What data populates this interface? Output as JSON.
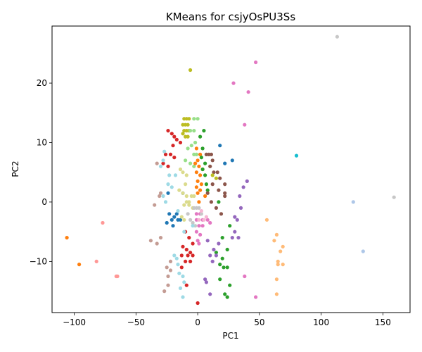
{
  "chart_data": {
    "type": "scatter",
    "title": "KMeans for csjyOsPU3Ss",
    "xlabel": "PC1",
    "ylabel": "PC2",
    "xlim": [
      -118,
      172
    ],
    "ylim": [
      -18.6,
      29.6
    ],
    "xticks": [
      -100,
      -50,
      0,
      50,
      100,
      150
    ],
    "yticks": [
      -10,
      0,
      10,
      20
    ],
    "xtick_labels": [
      "−100",
      "−50",
      "0",
      "50",
      "100",
      "150"
    ],
    "ytick_labels": [
      "−10",
      "0",
      "10",
      "20"
    ],
    "grid": false,
    "legend": "none",
    "series": [
      {
        "color": "#bcbd22",
        "points": [
          [
            -11,
            14
          ],
          [
            -9,
            14
          ],
          [
            -7,
            14
          ],
          [
            -12,
            13
          ],
          [
            -10,
            13
          ],
          [
            -8,
            13
          ],
          [
            -11,
            12
          ],
          [
            -9,
            12
          ],
          [
            -7,
            12
          ],
          [
            -12,
            11.5
          ],
          [
            -10,
            11
          ],
          [
            -8,
            11
          ],
          [
            -6,
            22.2
          ]
        ]
      },
      {
        "color": "#98df8a",
        "points": [
          [
            -3,
            14
          ],
          [
            0,
            14
          ],
          [
            -6,
            12
          ],
          [
            -3,
            12
          ],
          [
            -2,
            10
          ],
          [
            -5,
            9.5
          ],
          [
            -8,
            9
          ],
          [
            -3,
            8
          ],
          [
            -1,
            8
          ],
          [
            -10,
            7
          ],
          [
            -6,
            6.5
          ],
          [
            -3,
            6
          ]
        ]
      },
      {
        "color": "#d62728",
        "points": [
          [
            -24,
            12
          ],
          [
            -21,
            11.5
          ],
          [
            -19,
            11
          ],
          [
            -17,
            10.5
          ],
          [
            -14,
            10
          ],
          [
            -20,
            9.5
          ],
          [
            -26,
            8
          ],
          [
            -22,
            8
          ],
          [
            -19,
            7.5
          ],
          [
            -28,
            6.5
          ],
          [
            -24,
            6
          ],
          [
            -10,
            -5
          ],
          [
            -7,
            -6
          ],
          [
            -4,
            -7
          ],
          [
            -12,
            -7.5
          ],
          [
            -9,
            -8
          ],
          [
            -6,
            -8.5
          ],
          [
            -13,
            -9
          ],
          [
            -8,
            -9
          ],
          [
            -4,
            -9
          ],
          [
            -10,
            -10
          ],
          [
            -6,
            -10
          ],
          [
            -13,
            -11
          ],
          [
            -9,
            -14
          ],
          [
            0,
            -17
          ]
        ]
      },
      {
        "color": "#1f77b4",
        "points": [
          [
            -23,
            -2
          ],
          [
            -21,
            -3
          ],
          [
            -19,
            -2.5
          ],
          [
            -25,
            -3.5
          ],
          [
            -20,
            -4
          ],
          [
            -17,
            -2
          ],
          [
            -16,
            -3
          ],
          [
            -12,
            1.5
          ],
          [
            -14,
            -3
          ],
          [
            18,
            9.5
          ],
          [
            28,
            7
          ],
          [
            22,
            6.5
          ],
          [
            -24,
            1.5
          ]
        ]
      },
      {
        "color": "#ff7f0e",
        "points": [
          [
            -1,
            9
          ],
          [
            2,
            8
          ],
          [
            0,
            7
          ],
          [
            -2,
            6.5
          ],
          [
            1,
            6
          ],
          [
            4,
            5.5
          ],
          [
            -1,
            5
          ],
          [
            2,
            4.5
          ],
          [
            0,
            3.5
          ],
          [
            3,
            3
          ],
          [
            -1,
            2.5
          ],
          [
            2,
            2
          ],
          [
            0,
            1.5
          ],
          [
            6,
            1
          ],
          [
            1,
            0
          ],
          [
            -106,
            -6
          ],
          [
            -96,
            -10.5
          ]
        ]
      },
      {
        "color": "#2ca02c",
        "points": [
          [
            5,
            12
          ],
          [
            2,
            11
          ],
          [
            4,
            9
          ],
          [
            3,
            7.5
          ],
          [
            6,
            6.5
          ],
          [
            4,
            5.5
          ],
          [
            6,
            4.5
          ],
          [
            7,
            3
          ],
          [
            8,
            2
          ],
          [
            17,
            0
          ],
          [
            26,
            -4
          ],
          [
            20,
            -6
          ],
          [
            24,
            -8
          ],
          [
            15,
            -8.5
          ],
          [
            20,
            -9.5
          ],
          [
            18,
            -10.5
          ],
          [
            21,
            -11
          ],
          [
            24,
            -11
          ],
          [
            18,
            -13
          ],
          [
            26,
            -14
          ],
          [
            22,
            -15.5
          ],
          [
            24,
            -16
          ]
        ]
      },
      {
        "color": "#8c564b",
        "points": [
          [
            7,
            8
          ],
          [
            9,
            8
          ],
          [
            11,
            8
          ],
          [
            12,
            7
          ],
          [
            10,
            6
          ],
          [
            13,
            5
          ],
          [
            16,
            5
          ],
          [
            18,
            4
          ],
          [
            22,
            3
          ],
          [
            12,
            3
          ],
          [
            17,
            2
          ],
          [
            8,
            1.5
          ],
          [
            22,
            1
          ],
          [
            11,
            0
          ],
          [
            15,
            -1
          ],
          [
            19,
            -2
          ],
          [
            22,
            1.5
          ]
        ]
      },
      {
        "color": "#9467bd",
        "points": [
          [
            40,
            3.5
          ],
          [
            37,
            2.5
          ],
          [
            34,
            1
          ],
          [
            35,
            -1
          ],
          [
            30,
            -2.5
          ],
          [
            32,
            -3
          ],
          [
            30,
            -5
          ],
          [
            28,
            -6
          ],
          [
            33,
            -6
          ],
          [
            8,
            -6.5
          ],
          [
            17,
            -7
          ],
          [
            13,
            -8
          ],
          [
            10,
            -9
          ],
          [
            15,
            -9
          ],
          [
            12,
            -10
          ],
          [
            6,
            -13
          ],
          [
            7,
            -13.5
          ],
          [
            10,
            -15.5
          ]
        ]
      },
      {
        "color": "#e377c2",
        "points": [
          [
            47,
            23.5
          ],
          [
            29,
            20
          ],
          [
            41,
            18.5
          ],
          [
            38,
            13
          ],
          [
            -1,
            -2
          ],
          [
            2,
            -2
          ],
          [
            -1,
            -3
          ],
          [
            4,
            -3
          ],
          [
            8,
            -3
          ],
          [
            10,
            -3.5
          ],
          [
            1,
            -4
          ],
          [
            4,
            -4
          ],
          [
            -1,
            -5
          ],
          [
            2,
            -5.5
          ],
          [
            0,
            -6.5
          ],
          [
            1,
            -7
          ],
          [
            38,
            -12.5
          ],
          [
            47,
            -16
          ]
        ]
      },
      {
        "color": "#bcbd22",
        "points": [
          [
            12,
            4.5
          ],
          [
            15,
            4
          ]
        ]
      },
      {
        "color": "#dbdb8d",
        "points": [
          [
            -14,
            5.5
          ],
          [
            -12,
            5
          ],
          [
            -9,
            4.5
          ],
          [
            -10,
            3
          ],
          [
            -15,
            2
          ],
          [
            -12,
            1.5
          ],
          [
            -9,
            1
          ],
          [
            -7,
            0
          ],
          [
            -5,
            1
          ],
          [
            -3,
            1
          ],
          [
            -9,
            0
          ],
          [
            -11,
            -0.5
          ],
          [
            -7,
            -0.5
          ],
          [
            -4,
            -1
          ],
          [
            -13,
            -2.5
          ],
          [
            -11,
            -3
          ]
        ]
      },
      {
        "color": "#c7c7c7",
        "points": [
          [
            -3,
            -1
          ],
          [
            -1,
            -1
          ],
          [
            -6,
            -3
          ],
          [
            -4,
            -3.5
          ],
          [
            -2,
            -4
          ],
          [
            1,
            -1
          ],
          [
            113,
            27.8
          ],
          [
            159,
            0.8
          ],
          [
            -8,
            -2
          ],
          [
            3,
            -2
          ]
        ]
      },
      {
        "color": "#17becf",
        "points": [
          [
            80,
            7.8
          ]
        ]
      },
      {
        "color": "#9edae5",
        "points": [
          [
            -27,
            8.5
          ],
          [
            -28,
            7
          ],
          [
            -30,
            6
          ],
          [
            -23,
            4.5
          ],
          [
            -18,
            4.5
          ],
          [
            -24,
            3
          ],
          [
            -21,
            2.5
          ],
          [
            -28,
            1
          ],
          [
            -26,
            0
          ],
          [
            -16,
            -1.5
          ],
          [
            -11,
            -5
          ],
          [
            -19,
            -9
          ],
          [
            -17,
            -9.5
          ],
          [
            -16,
            -10.5
          ],
          [
            -12,
            -12.5
          ],
          [
            -15,
            -12
          ],
          [
            -11,
            -13.5
          ],
          [
            -14,
            -14.5
          ],
          [
            -12,
            -16
          ],
          [
            -4,
            -4
          ]
        ]
      },
      {
        "color": "#c49c94",
        "points": [
          [
            -33,
            6.5
          ],
          [
            -30,
            1.5
          ],
          [
            -31,
            1
          ],
          [
            -35,
            -0.5
          ],
          [
            -30,
            -6
          ],
          [
            -38,
            -6.5
          ],
          [
            -33,
            -7
          ],
          [
            -22,
            -10
          ],
          [
            -25,
            -11
          ],
          [
            -22,
            -11.5
          ],
          [
            -24,
            -12.5
          ],
          [
            -24,
            -14
          ],
          [
            -27,
            -15
          ]
        ]
      },
      {
        "color": "#aec7e8",
        "points": [
          [
            126,
            0
          ],
          [
            134,
            -8.3
          ]
        ]
      },
      {
        "color": "#ffbb78",
        "points": [
          [
            56,
            -3
          ],
          [
            64,
            -5.5
          ],
          [
            62,
            -6.5
          ],
          [
            69,
            -7.5
          ],
          [
            67,
            -8.3
          ],
          [
            65,
            -10
          ],
          [
            69,
            -10.5
          ],
          [
            65,
            -10.5
          ],
          [
            64,
            -13
          ],
          [
            64,
            -15.5
          ]
        ]
      },
      {
        "color": "#ff9896",
        "points": [
          [
            -77,
            -3.5
          ],
          [
            -82,
            -10
          ],
          [
            -65,
            -12.5
          ],
          [
            -66,
            -12.5
          ]
        ]
      },
      {
        "color": "#f7b6d2",
        "points": [
          [
            1,
            -3
          ],
          [
            5,
            -3
          ],
          [
            7,
            -2.5
          ],
          [
            3,
            -1.5
          ]
        ]
      }
    ]
  }
}
